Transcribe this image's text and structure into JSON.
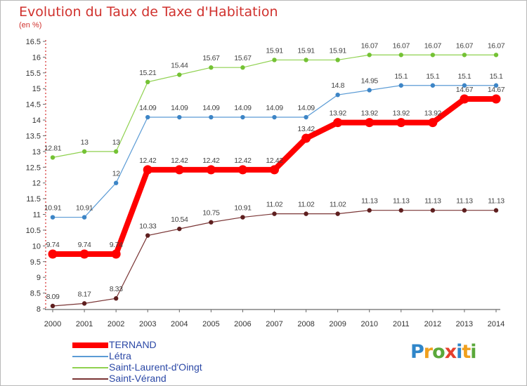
{
  "title": "Evolution du Taux de Taxe d'Habitation",
  "unit": "(en %)",
  "logo": {
    "text": "Proxiti",
    "letters": [
      {
        "ch": "P",
        "color": "#2f86c9"
      },
      {
        "ch": "r",
        "color": "#f0a01e"
      },
      {
        "ch": "o",
        "color": "#5aa83a"
      },
      {
        "ch": "x",
        "color": "#e63f2c"
      },
      {
        "ch": "i",
        "color": "#2f86c9"
      },
      {
        "ch": "t",
        "color": "#f0a01e"
      },
      {
        "ch": "i",
        "color": "#5aa83a"
      }
    ]
  },
  "chart_data": {
    "type": "line",
    "x": [
      "2000",
      "2001",
      "2002",
      "2003",
      "2004",
      "2005",
      "2006",
      "2007",
      "2008",
      "2009",
      "2010",
      "2011",
      "2012",
      "2013",
      "2014"
    ],
    "ylim": [
      8,
      16.5
    ],
    "yticks": [
      "8",
      "8.5",
      "9",
      "9.5",
      "10",
      "10.5",
      "11",
      "11.5",
      "12",
      "12.5",
      "13",
      "13.5",
      "14",
      "14.5",
      "15",
      "15.5",
      "16",
      "16.5"
    ],
    "grid": false,
    "legend_position": "bottom-left",
    "series": [
      {
        "name": "TERNAND",
        "color": "#ff0000",
        "highlight": true,
        "values": [
          9.74,
          9.74,
          9.74,
          12.42,
          12.42,
          12.42,
          12.42,
          12.42,
          13.42,
          13.92,
          13.92,
          13.92,
          13.92,
          14.67,
          14.67
        ],
        "labels": [
          "9.74",
          "9.74",
          "9.74",
          "12.42",
          "12.42",
          "12.42",
          "12.42",
          "12.42",
          "13.42",
          "13.92",
          "13.92",
          "13.92",
          "13.92",
          "14.67",
          "14.67"
        ]
      },
      {
        "name": "Létra",
        "color": "#5b9bd5",
        "marker": "#3d85c6",
        "highlight": false,
        "values": [
          10.91,
          10.91,
          12,
          14.09,
          14.09,
          14.09,
          14.09,
          14.09,
          14.09,
          14.8,
          14.95,
          15.1,
          15.1,
          15.1,
          15.1
        ],
        "labels": [
          "10.91",
          "10.91",
          "12",
          "14.09",
          "14.09",
          "14.09",
          "14.09",
          "14.09",
          "14.09",
          "14.8",
          "14.95",
          "15.1",
          "15.1",
          "15.1",
          "15.1"
        ]
      },
      {
        "name": "Saint-Laurent-d'Oingt",
        "color": "#8fd14f",
        "marker": "#74c234",
        "highlight": false,
        "values": [
          12.81,
          13,
          13,
          15.21,
          15.44,
          15.67,
          15.67,
          15.91,
          15.91,
          15.91,
          16.07,
          16.07,
          16.07,
          16.07,
          16.07
        ],
        "labels": [
          "12.81",
          "13",
          "13",
          "15.21",
          "15.44",
          "15.67",
          "15.67",
          "15.91",
          "15.91",
          "15.91",
          "16.07",
          "16.07",
          "16.07",
          "16.07",
          "16.07"
        ]
      },
      {
        "name": "Saint-Vérand",
        "color": "#7a3535",
        "marker": "#5e1f1f",
        "highlight": false,
        "values": [
          8.09,
          8.17,
          8.33,
          10.33,
          10.54,
          10.75,
          10.91,
          11.02,
          11.02,
          11.02,
          11.13,
          11.13,
          11.13,
          11.13,
          11.13
        ],
        "labels": [
          "8.09",
          "8.17",
          "8.33",
          "10.33",
          "10.54",
          "10.75",
          "10.91",
          "11.02",
          "11.02",
          "11.02",
          "11.13",
          "11.13",
          "11.13",
          "11.13",
          "11.13"
        ]
      }
    ]
  }
}
